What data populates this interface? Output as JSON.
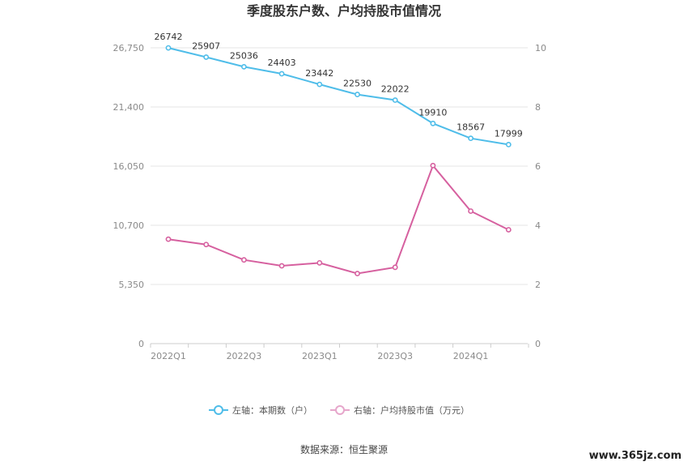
{
  "chart_data": {
    "type": "line",
    "title": "季度股东户数、户均持股市值情况",
    "categories": [
      "2022Q1",
      "2022Q2",
      "2022Q3",
      "2022Q4",
      "2023Q1",
      "2023Q2",
      "2023Q3",
      "2023Q4",
      "2024Q1",
      "2024Q2"
    ],
    "x_tick_labels": [
      "2022Q1",
      "2022Q3",
      "2023Q1",
      "2023Q3",
      "2024Q1"
    ],
    "left_axis": {
      "ticks": [
        "0",
        "5,350",
        "10,700",
        "16,050",
        "21,400",
        "26,750"
      ],
      "ylim": [
        0,
        26750
      ]
    },
    "right_axis": {
      "ticks": [
        "0",
        "2",
        "4",
        "6",
        "8",
        "10"
      ],
      "ylim": [
        0,
        10
      ]
    },
    "grid": true,
    "legend_position": "bottom",
    "series": [
      {
        "name": "左轴：本期数（户）",
        "axis": "left",
        "color": "#4fbde9",
        "values": [
          26742,
          25907,
          25036,
          24403,
          23442,
          22530,
          22022,
          19910,
          18567,
          17999
        ],
        "labels": [
          "26742",
          "25907",
          "25036",
          "24403",
          "23442",
          "22530",
          "22022",
          "19910",
          "18567",
          "17999"
        ]
      },
      {
        "name": "右轴：户均持股市值（万元）",
        "axis": "right",
        "color": "#d6609f",
        "values": [
          3.53,
          3.35,
          2.83,
          2.63,
          2.73,
          2.37,
          2.58,
          6.02,
          4.48,
          3.85
        ]
      }
    ]
  },
  "footer": {
    "source": "数据来源：恒生聚源",
    "watermark": "www.365jz.com"
  }
}
